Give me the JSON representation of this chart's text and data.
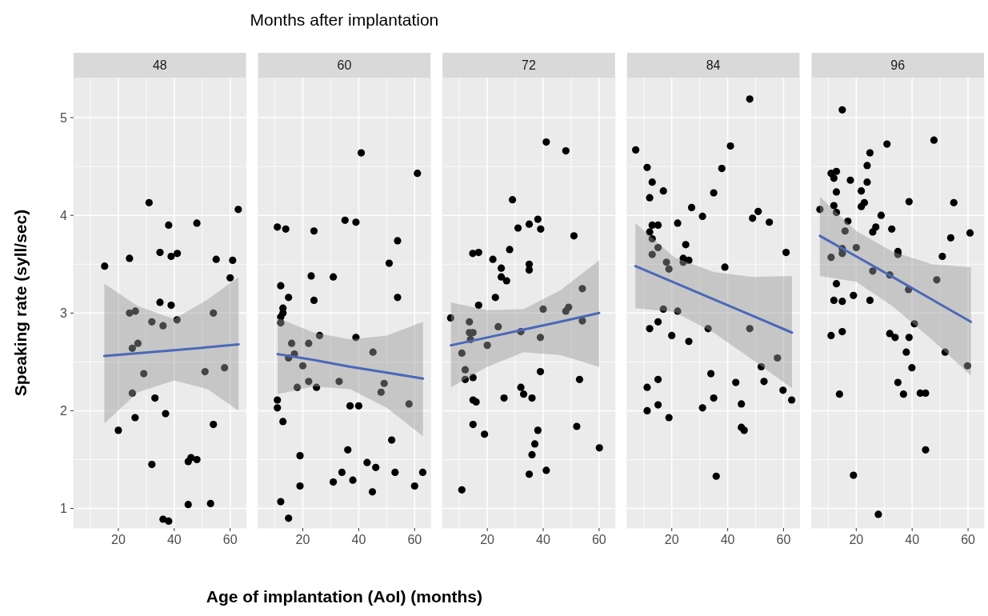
{
  "chart_data": [
    {
      "type": "scatter",
      "title": "48",
      "ylabel": "Speaking rate (syll/sec)",
      "xlim": [
        4,
        65.7
      ],
      "xticks": [
        20,
        40,
        60
      ],
      "ylim": [
        0.8,
        5.41
      ],
      "yticks": [
        1,
        2,
        3,
        4,
        5
      ],
      "grid": true,
      "marker": "circle",
      "series": [
        {
          "color": "#000000",
          "x": [
            31.0,
            62.9,
            38.0,
            48.1,
            34.9,
            38.9,
            41.1,
            24.0,
            55.0,
            60.9,
            15.1,
            60.0,
            34.9,
            38.9,
            24.0,
            26.1,
            54.0,
            32.0,
            36.0,
            41.0,
            27.0,
            25.0,
            29.1,
            51.0,
            58.0,
            25.0,
            33.1,
            26.0,
            36.9,
            20.0,
            54.0,
            32.0,
            45.0,
            46.0,
            48.1,
            45.0,
            53.0,
            36.0,
            38.0
          ],
          "values": [
            4.13,
            4.06,
            3.9,
            3.92,
            3.62,
            3.58,
            3.61,
            3.56,
            3.55,
            3.54,
            3.48,
            3.36,
            3.11,
            3.08,
            3.0,
            3.02,
            3.0,
            2.91,
            2.87,
            2.93,
            2.69,
            2.64,
            2.38,
            2.4,
            2.44,
            2.18,
            2.13,
            1.93,
            1.97,
            1.8,
            1.86,
            1.45,
            1.48,
            1.52,
            1.5,
            1.04,
            1.05,
            0.89,
            0.87
          ]
        },
        {
          "type": "line",
          "marker": "none",
          "color": "#4a68b8",
          "x": [
            15,
            27,
            40,
            52,
            63
          ],
          "values": [
            2.56,
            2.59,
            2.62,
            2.65,
            2.68
          ],
          "lower": [
            1.87,
            2.19,
            2.31,
            2.22,
            2.0
          ],
          "upper": [
            3.3,
            3.07,
            2.94,
            3.14,
            3.37
          ]
        }
      ]
    },
    {
      "type": "scatter",
      "title": "60",
      "xlabel": "Age of implantation (AoI) (months)",
      "annotations": [
        "Months after implantation"
      ],
      "xlim": [
        4,
        65.7
      ],
      "xticks": [
        20,
        40,
        60
      ],
      "ylim": [
        0.8,
        5.41
      ],
      "yticks": [
        1,
        2,
        3,
        4,
        5
      ],
      "grid": true,
      "marker": "circle",
      "tick_labels": "x",
      "series": [
        {
          "color": "#000000",
          "x": [
            40.9,
            61.0,
            10.9,
            13.9,
            24.0,
            35.1,
            39.0,
            53.9,
            50.9,
            23.0,
            30.9,
            12.1,
            14.9,
            24.0,
            53.9,
            12.9,
            12.9,
            12.1,
            12.1,
            26.0,
            39.0,
            16.0,
            22.1,
            17.0,
            14.9,
            20.0,
            45.1,
            22.1,
            33.0,
            18.0,
            24.9,
            49.1,
            48.0,
            58.0,
            10.9,
            10.9,
            36.9,
            40.0,
            12.9,
            51.8,
            36.1,
            19.0,
            43.0,
            46.1,
            34.0,
            53.0,
            62.9,
            37.9,
            30.9,
            19.0,
            60.0,
            44.9,
            12.1,
            14.9
          ],
          "values": [
            4.64,
            4.43,
            3.88,
            3.86,
            3.84,
            3.95,
            3.93,
            3.74,
            3.51,
            3.38,
            3.37,
            3.28,
            3.16,
            3.13,
            3.16,
            3.05,
            3.0,
            2.96,
            2.9,
            2.77,
            2.75,
            2.69,
            2.69,
            2.58,
            2.54,
            2.46,
            2.6,
            2.3,
            2.3,
            2.24,
            2.24,
            2.28,
            2.19,
            2.07,
            2.11,
            2.03,
            2.05,
            2.05,
            1.89,
            1.7,
            1.6,
            1.54,
            1.47,
            1.42,
            1.37,
            1.37,
            1.37,
            1.29,
            1.27,
            1.23,
            1.23,
            1.17,
            1.07,
            0.9
          ]
        },
        {
          "type": "line",
          "marker": "none",
          "color": "#4a68b8",
          "x": [
            11,
            24,
            37,
            50,
            63
          ],
          "values": [
            2.58,
            2.52,
            2.45,
            2.39,
            2.33
          ],
          "lower": [
            2.17,
            2.25,
            2.22,
            2.03,
            1.74
          ],
          "upper": [
            2.95,
            2.8,
            2.73,
            2.77,
            2.91
          ]
        }
      ]
    },
    {
      "type": "scatter",
      "title": "72",
      "xlim": [
        4,
        65.7
      ],
      "xticks": [
        20,
        40,
        60
      ],
      "ylim": [
        0.8,
        5.41
      ],
      "yticks": [
        1,
        2,
        3,
        4,
        5
      ],
      "grid": true,
      "marker": "circle",
      "tick_labels": "x",
      "series": [
        {
          "color": "#000000",
          "x": [
            41.1,
            48.1,
            29.0,
            31.0,
            35.0,
            38.1,
            39.1,
            51.0,
            14.8,
            16.9,
            28.0,
            22.0,
            25.0,
            35.0,
            35.0,
            25.0,
            26.9,
            54.0,
            22.9,
            16.9,
            6.9,
            40.0,
            48.1,
            49.1,
            54.0,
            13.6,
            13.6,
            14.9,
            14.0,
            23.9,
            32.0,
            39.0,
            20.0,
            10.9,
            12.1,
            12.1,
            14.9,
            39.0,
            53.0,
            32.0,
            33.0,
            36.0,
            26.0,
            14.9,
            16.0,
            14.9,
            19.0,
            38.1,
            52.0,
            37.0,
            60.1,
            36.0,
            35.0,
            41.1,
            10.9
          ],
          "values": [
            4.75,
            4.66,
            4.16,
            3.87,
            3.91,
            3.96,
            3.86,
            3.79,
            3.61,
            3.62,
            3.65,
            3.55,
            3.46,
            3.5,
            3.44,
            3.37,
            3.33,
            3.25,
            3.16,
            3.08,
            2.95,
            3.04,
            3.02,
            3.06,
            2.92,
            2.91,
            2.8,
            2.8,
            2.73,
            2.86,
            2.81,
            2.75,
            2.67,
            2.59,
            2.42,
            2.32,
            2.34,
            2.4,
            2.32,
            2.24,
            2.17,
            2.13,
            2.13,
            2.11,
            2.09,
            1.86,
            1.76,
            1.8,
            1.84,
            1.66,
            1.62,
            1.55,
            1.35,
            1.39,
            1.19
          ]
        },
        {
          "type": "line",
          "marker": "none",
          "color": "#4a68b8",
          "x": [
            7,
            20,
            33,
            46,
            60
          ],
          "values": [
            2.67,
            2.75,
            2.83,
            2.91,
            3.0
          ],
          "lower": [
            2.24,
            2.45,
            2.6,
            2.57,
            2.45
          ],
          "upper": [
            3.11,
            3.03,
            3.04,
            3.23,
            3.54
          ]
        }
      ]
    },
    {
      "type": "scatter",
      "title": "84",
      "xlim": [
        4,
        65.7
      ],
      "xticks": [
        20,
        40,
        60
      ],
      "ylim": [
        0.8,
        5.41
      ],
      "yticks": [
        1,
        2,
        3,
        4,
        5
      ],
      "grid": true,
      "marker": "circle",
      "tick_labels": "x",
      "series": [
        {
          "color": "#000000",
          "x": [
            47.9,
            7.1,
            41.0,
            11.2,
            37.9,
            13.0,
            17.0,
            12.1,
            35.0,
            27.1,
            31.0,
            50.9,
            48.9,
            54.9,
            13.0,
            15.1,
            22.1,
            12.1,
            13.0,
            15.1,
            25.0,
            13.0,
            60.9,
            18.1,
            24.1,
            24.1,
            26.1,
            19.0,
            39.0,
            17.0,
            22.1,
            15.1,
            12.1,
            20.0,
            26.1,
            33.0,
            47.9,
            57.8,
            52.0,
            34.0,
            42.9,
            53.0,
            15.1,
            11.2,
            59.8,
            62.9,
            35.0,
            15.1,
            11.2,
            31.0,
            44.9,
            19.0,
            44.9,
            45.9,
            35.9
          ],
          "values": [
            5.19,
            4.67,
            4.71,
            4.49,
            4.48,
            4.34,
            4.25,
            4.18,
            4.23,
            4.08,
            3.99,
            4.04,
            3.97,
            3.93,
            3.9,
            3.9,
            3.92,
            3.83,
            3.76,
            3.67,
            3.7,
            3.6,
            3.62,
            3.52,
            3.56,
            3.52,
            3.54,
            3.45,
            3.47,
            3.04,
            3.02,
            2.91,
            2.84,
            2.77,
            2.71,
            2.84,
            2.84,
            2.54,
            2.45,
            2.38,
            2.29,
            2.3,
            2.32,
            2.24,
            2.21,
            2.11,
            2.13,
            2.06,
            2.0,
            2.03,
            2.07,
            1.93,
            1.83,
            1.8,
            1.33
          ]
        },
        {
          "type": "line",
          "marker": "none",
          "color": "#4a68b8",
          "x": [
            7,
            21,
            35,
            49,
            63
          ],
          "values": [
            3.48,
            3.31,
            3.14,
            2.97,
            2.8
          ],
          "lower": [
            3.05,
            3.01,
            2.8,
            2.52,
            2.23
          ],
          "upper": [
            3.92,
            3.57,
            3.42,
            3.37,
            3.38
          ]
        }
      ]
    },
    {
      "type": "scatter",
      "title": "96",
      "xlim": [
        4,
        65.7
      ],
      "xticks": [
        20,
        40,
        60
      ],
      "ylim": [
        0.8,
        5.41
      ],
      "yticks": [
        1,
        2,
        3,
        4,
        5
      ],
      "grid": true,
      "marker": "circle",
      "tick_labels": "x",
      "series": [
        {
          "color": "#000000",
          "x": [
            15.0,
            47.8,
            31.0,
            24.9,
            23.9,
            11.0,
            12.9,
            12.0,
            17.9,
            23.9,
            12.9,
            21.8,
            22.9,
            21.8,
            12.0,
            7.0,
            38.9,
            54.9,
            12.9,
            28.9,
            17.0,
            16.0,
            27.0,
            25.9,
            32.7,
            60.7,
            53.8,
            15.0,
            15.0,
            20.0,
            11.0,
            34.9,
            34.9,
            50.8,
            25.9,
            32.0,
            48.8,
            12.9,
            38.7,
            12.0,
            15.0,
            19.0,
            24.9,
            40.8,
            15.0,
            11.0,
            32.0,
            33.9,
            38.9,
            37.9,
            51.8,
            59.8,
            39.9,
            34.9,
            36.9,
            14.0,
            42.9,
            44.8,
            44.8,
            19.0,
            27.9
          ],
          "values": [
            5.08,
            4.77,
            4.73,
            4.64,
            4.51,
            4.43,
            4.45,
            4.38,
            4.36,
            4.34,
            4.24,
            4.25,
            4.13,
            4.09,
            4.1,
            4.06,
            4.14,
            4.13,
            4.03,
            4.0,
            3.94,
            3.84,
            3.88,
            3.83,
            3.86,
            3.82,
            3.77,
            3.66,
            3.61,
            3.67,
            3.57,
            3.63,
            3.6,
            3.58,
            3.43,
            3.39,
            3.34,
            3.3,
            3.24,
            3.13,
            3.12,
            3.18,
            3.13,
            2.89,
            2.81,
            2.77,
            2.79,
            2.75,
            2.75,
            2.6,
            2.6,
            2.46,
            2.44,
            2.29,
            2.17,
            2.17,
            2.18,
            2.18,
            1.6,
            1.34,
            0.94
          ]
        },
        {
          "type": "line",
          "marker": "none",
          "color": "#4a68b8",
          "x": [
            7,
            20,
            33,
            47,
            61
          ],
          "values": [
            3.79,
            3.58,
            3.37,
            3.14,
            2.91
          ],
          "lower": [
            3.38,
            3.32,
            3.07,
            2.73,
            2.36
          ],
          "upper": [
            4.19,
            3.84,
            3.63,
            3.5,
            3.47
          ]
        }
      ]
    }
  ]
}
